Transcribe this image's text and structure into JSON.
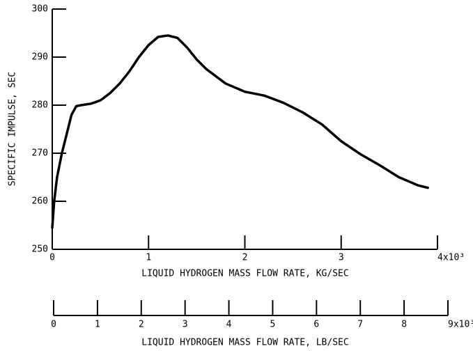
{
  "chart_data": {
    "type": "line",
    "xlabel": "LIQUID HYDROGEN MASS FLOW RATE, KG/SEC",
    "ylabel": "SPECIFIC IMPULSE, SEC",
    "x2label": "LIQUID HYDROGEN MASS FLOW RATE, LB/SEC",
    "xlim": [
      0,
      4
    ],
    "xticks": [
      0,
      1,
      2,
      3,
      {
        "value": 4,
        "label": "4x10³"
      }
    ],
    "ylim": [
      250,
      300
    ],
    "yticks": [
      250,
      260,
      270,
      280,
      290,
      300
    ],
    "x2lim": [
      0,
      9
    ],
    "x2ticks": [
      0,
      1,
      2,
      3,
      4,
      5,
      6,
      7,
      8,
      {
        "value": 9,
        "label": "9x10³"
      }
    ],
    "x": [
      0,
      0.02,
      0.05,
      0.1,
      0.15,
      0.2,
      0.25,
      0.3,
      0.4,
      0.5,
      0.6,
      0.7,
      0.8,
      0.9,
      1.0,
      1.1,
      1.2,
      1.3,
      1.4,
      1.5,
      1.6,
      1.8,
      2.0,
      2.2,
      2.4,
      2.6,
      2.8,
      3.0,
      3.2,
      3.4,
      3.6,
      3.8,
      3.9
    ],
    "series": [
      {
        "color": "#000000",
        "values": [
          254.5,
          260,
          265,
          270,
          274,
          278,
          279.8,
          280,
          280.3,
          281,
          282.5,
          284.5,
          287,
          290,
          292.5,
          294.2,
          294.5,
          294,
          292,
          289.5,
          287.5,
          284.5,
          282.8,
          282,
          280.5,
          278.5,
          276,
          272.5,
          269.8,
          267.5,
          265,
          263.3,
          262.8
        ]
      }
    ]
  }
}
